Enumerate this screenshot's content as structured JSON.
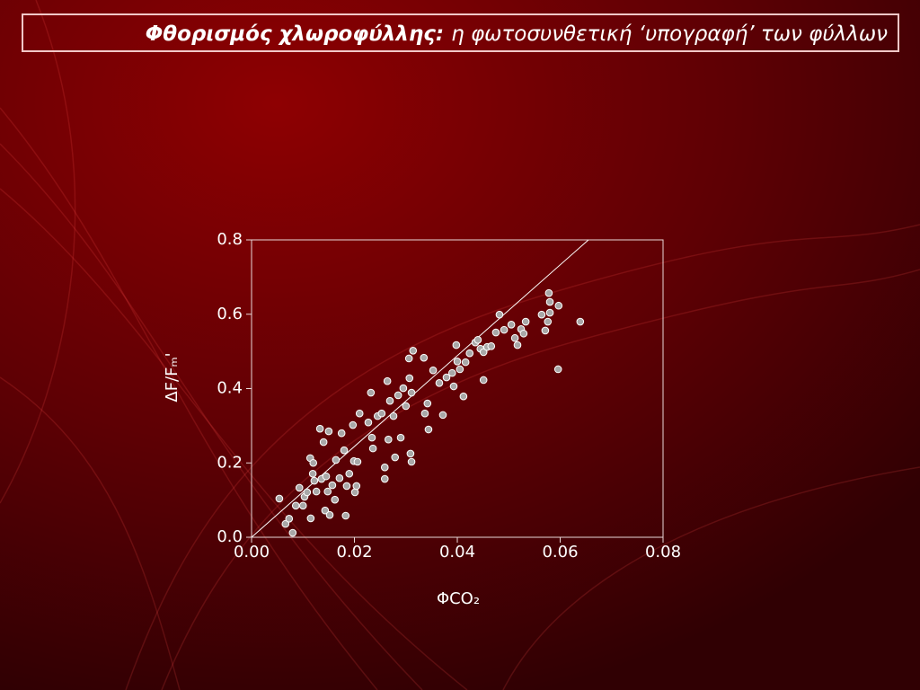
{
  "chart_data": {
    "type": "scatter",
    "title": "Φθορισμός χλωροφύλλης:",
    "subtitle": "η φωτοσυνθετική ‘υπογραφή’ των φύλλων",
    "xlabel": "ΦCO₂",
    "ylabel": "ΔF/Fₘ'",
    "xlim": [
      0,
      0.08
    ],
    "ylim": [
      0,
      0.8
    ],
    "xticks": [
      {
        "value": 0,
        "label": "0.00"
      },
      {
        "value": 0.02,
        "label": "0.02"
      },
      {
        "value": 0.04,
        "label": "0.04"
      },
      {
        "value": 0.06,
        "label": "0.06"
      },
      {
        "value": 0.08,
        "label": "0.08"
      }
    ],
    "yticks": [
      {
        "value": 0,
        "label": "0.0"
      },
      0.2,
      0.4,
      0.6,
      0.8
    ],
    "point_color": "#a8a8a8",
    "line_color": "#ffffff",
    "x": [
      0.0054,
      0.0066,
      0.0073,
      0.008,
      0.0086,
      0.0093,
      0.01,
      0.0103,
      0.0108,
      0.0114,
      0.0115,
      0.0119,
      0.012,
      0.0122,
      0.0126,
      0.0133,
      0.0136,
      0.014,
      0.0143,
      0.0145,
      0.0148,
      0.015,
      0.0152,
      0.0157,
      0.0162,
      0.0164,
      0.0171,
      0.0175,
      0.018,
      0.0183,
      0.0185,
      0.019,
      0.0197,
      0.0199,
      0.0201,
      0.0204,
      0.0206,
      0.021,
      0.0227,
      0.0232,
      0.0234,
      0.0236,
      0.0245,
      0.0253,
      0.0259,
      0.0259,
      0.0264,
      0.0266,
      0.0269,
      0.0276,
      0.0279,
      0.0285,
      0.029,
      0.0295,
      0.03,
      0.0306,
      0.0307,
      0.0309,
      0.0311,
      0.0311,
      0.0314,
      0.0335,
      0.0337,
      0.0342,
      0.0344,
      0.0353,
      0.0365,
      0.0372,
      0.0379,
      0.039,
      0.0393,
      0.0398,
      0.04,
      0.0405,
      0.0412,
      0.0416,
      0.0424,
      0.0435,
      0.044,
      0.0445,
      0.0451,
      0.0451,
      0.0458,
      0.0466,
      0.0475,
      0.0482,
      0.0491,
      0.0505,
      0.0512,
      0.0517,
      0.0524,
      0.0529,
      0.0533,
      0.0564,
      0.0571,
      0.0576,
      0.0578,
      0.058,
      0.058,
      0.0596,
      0.0597,
      0.0639
    ],
    "y": [
      0.104,
      0.036,
      0.05,
      0.012,
      0.085,
      0.133,
      0.085,
      0.109,
      0.121,
      0.213,
      0.051,
      0.171,
      0.2,
      0.152,
      0.123,
      0.292,
      0.157,
      0.256,
      0.072,
      0.164,
      0.123,
      0.285,
      0.06,
      0.14,
      0.101,
      0.208,
      0.159,
      0.28,
      0.234,
      0.058,
      0.138,
      0.171,
      0.302,
      0.205,
      0.121,
      0.138,
      0.203,
      0.333,
      0.309,
      0.389,
      0.268,
      0.239,
      0.326,
      0.333,
      0.157,
      0.188,
      0.42,
      0.263,
      0.367,
      0.326,
      0.215,
      0.382,
      0.268,
      0.401,
      0.353,
      0.481,
      0.428,
      0.225,
      0.389,
      0.203,
      0.502,
      0.483,
      0.333,
      0.36,
      0.29,
      0.449,
      0.415,
      0.329,
      0.43,
      0.442,
      0.406,
      0.517,
      0.473,
      0.452,
      0.379,
      0.471,
      0.495,
      0.524,
      0.531,
      0.507,
      0.498,
      0.423,
      0.512,
      0.514,
      0.551,
      0.599,
      0.558,
      0.572,
      0.536,
      0.517,
      0.56,
      0.548,
      0.58,
      0.599,
      0.556,
      0.58,
      0.657,
      0.604,
      0.633,
      0.452,
      0.623,
      0.58
    ],
    "line": {
      "x": [
        0,
        0.0655
      ],
      "y": [
        0,
        0.8
      ]
    }
  }
}
